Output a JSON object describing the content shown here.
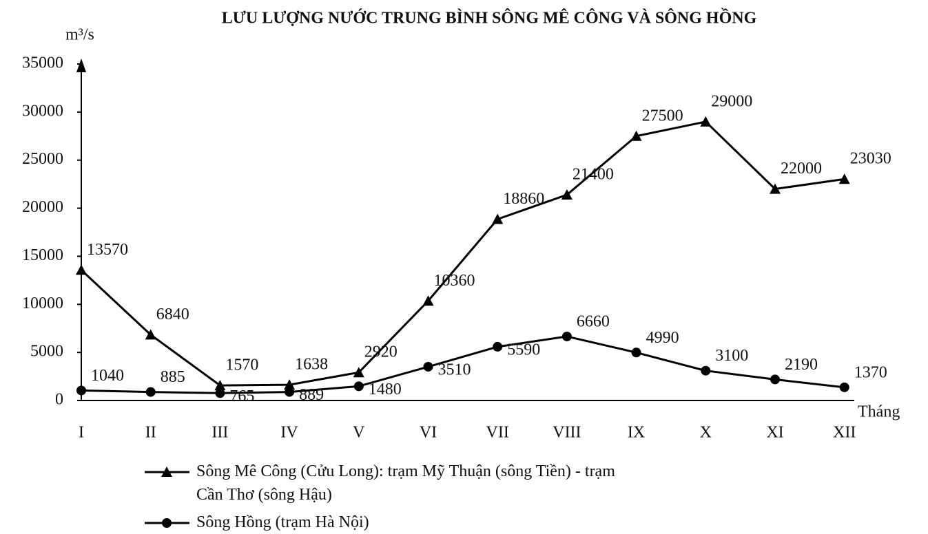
{
  "chart_data": {
    "type": "line",
    "title": "LƯU LƯỢNG NƯỚC TRUNG BÌNH SÔNG MÊ CÔNG VÀ SÔNG HỒNG",
    "ylabel": "m³/s",
    "xlabel": "Tháng",
    "categories": [
      "I",
      "II",
      "III",
      "IV",
      "V",
      "VI",
      "VII",
      "VIII",
      "IX",
      "X",
      "XI",
      "XII"
    ],
    "series": [
      {
        "name": "Sông Mê Công (Cửu Long): trạm Mỹ Thuận (sông Tiền) - trạm Cần Thơ (sông Hậu)",
        "color": "#000000",
        "marker": "triangle",
        "values": [
          13570,
          6840,
          1570,
          1638,
          2920,
          10360,
          18860,
          21400,
          27500,
          29000,
          22000,
          23030
        ]
      },
      {
        "name": "Sông Hồng (trạm Hà Nội)",
        "color": "#000000",
        "marker": "circle",
        "values": [
          1040,
          885,
          765,
          889,
          1480,
          3510,
          5590,
          6660,
          4990,
          3100,
          2190,
          1370
        ]
      }
    ],
    "ylim": [
      0,
      35000
    ],
    "yticks": [
      0,
      5000,
      10000,
      15000,
      20000,
      25000,
      30000,
      35000
    ],
    "grid": false
  }
}
